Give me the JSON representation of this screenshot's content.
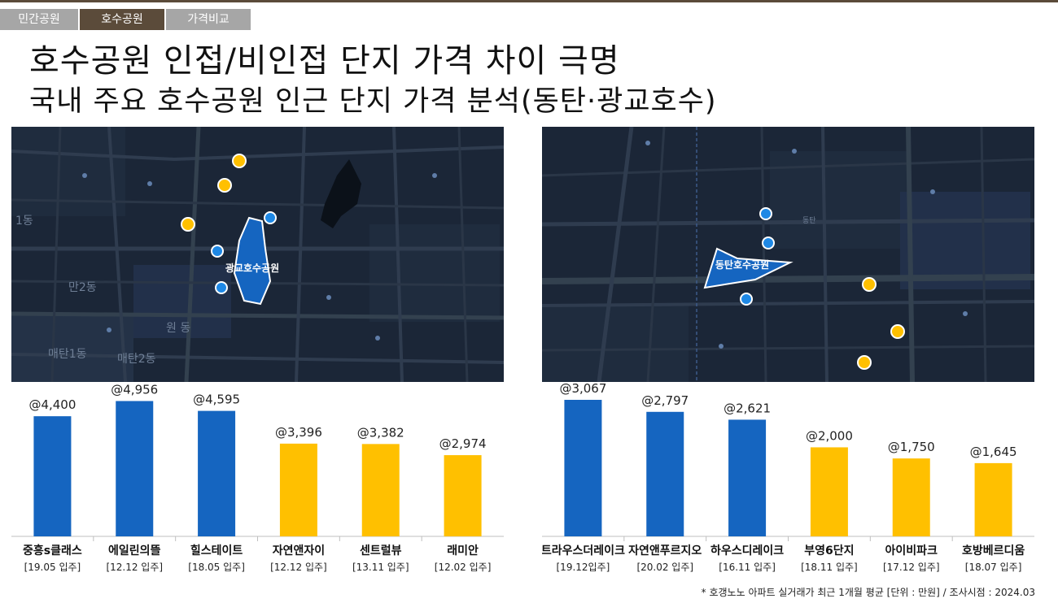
{
  "tabs": [
    {
      "label": "민간공원",
      "active": false
    },
    {
      "label": "호수공원",
      "active": true
    },
    {
      "label": "가격비교",
      "active": false
    }
  ],
  "title": "호수공원 인접/비인접 단지 가격 차이 극명",
  "subtitle": "국내 주요 호수공원 인근 단지 가격 분석(동탄·광교호수)",
  "maps": [
    {
      "park_label": "광교호수공원",
      "district_labels": [
        "1동",
        "만2동",
        "원 동",
        "매탄1동",
        "매탄2동"
      ]
    },
    {
      "park_label": "동탄호수공원",
      "district_labels": [
        "동탄"
      ]
    }
  ],
  "colors": {
    "near": "#1565c0",
    "far": "#ffc000",
    "brand": "#5b4b3a"
  },
  "chart_data": [
    {
      "type": "bar",
      "title": "",
      "categories": [
        "중흥s클래스",
        "에일린의뜰",
        "힐스테이트",
        "자연앤자이",
        "센트럴뷰",
        "래미안"
      ],
      "sublabels": [
        "[19.05 입주]",
        "[12.12 입주]",
        "[18.05 입주]",
        "[12.12 입주]",
        "[13.11 입주]",
        "[12.02 입주]"
      ],
      "values": [
        4400,
        4956,
        4595,
        3396,
        3382,
        2974
      ],
      "value_labels": [
        "@4,400",
        "@4,956",
        "@4,595",
        "@3,396",
        "@3,382",
        "@2,974"
      ],
      "bar_colors": [
        "#1565c0",
        "#1565c0",
        "#1565c0",
        "#ffc000",
        "#ffc000",
        "#ffc000"
      ],
      "ylim": [
        0,
        5000
      ],
      "grid": false
    },
    {
      "type": "bar",
      "title": "",
      "categories": [
        "트라우스더레이크",
        "자연앤푸르지오",
        "하우스디레이크",
        "부영6단지",
        "아이비파크",
        "호방베르디움"
      ],
      "sublabels": [
        "[19.12입주]",
        "[20.02 입주]",
        "[16.11 입주]",
        "[18.11 입주]",
        "[17.12 입주]",
        "[18.07 입주]"
      ],
      "values": [
        3067,
        2797,
        2621,
        2000,
        1750,
        1645
      ],
      "value_labels": [
        "@3,067",
        "@2,797",
        "@2,621",
        "@2,000",
        "@1,750",
        "@1,645"
      ],
      "bar_colors": [
        "#1565c0",
        "#1565c0",
        "#1565c0",
        "#ffc000",
        "#ffc000",
        "#ffc000"
      ],
      "ylim": [
        0,
        3067
      ],
      "grid": false
    }
  ],
  "footnote": "* 호갱노노 아파트 실거래가 최근 1개월 평균 [단위 : 만원] / 조사시점 : 2024.03"
}
